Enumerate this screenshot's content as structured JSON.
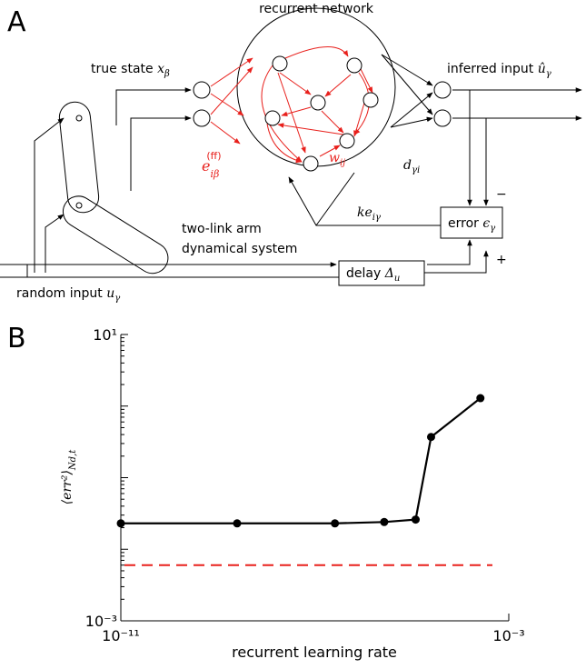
{
  "diagram": {
    "panel_a": "A",
    "network": "recurrent network",
    "true_state": "true state",
    "true_state_sym": "x",
    "true_state_sub": "β",
    "inferred": "inferred input",
    "inferred_sym": "û",
    "inferred_sub": "γ",
    "ff_sym": "e",
    "ff_sub": "iβ",
    "ff_sup": "(ff)",
    "w_sym": "w",
    "w_sub": "ij",
    "d_sym": "d",
    "d_sub": "γi",
    "k_sym": "ke",
    "k_sub": "iγ",
    "error": "error",
    "error_sym": "ϵ",
    "error_sub": "γ",
    "minus": "−",
    "plus": "+",
    "arm_line1": "two-link arm",
    "arm_line2": "dynamical system",
    "delay": "delay",
    "delay_sym": "Δ",
    "delay_sub": "u",
    "random": "random input",
    "random_sym": "u",
    "random_sub": "γ"
  },
  "chart_data": {
    "type": "line",
    "panel": "B",
    "xlabel": "recurrent learning rate",
    "ylabel": "⟨err²⟩",
    "ylabel_sub": "Nd,t",
    "xscale": "log",
    "yscale": "log",
    "xlim": [
      1e-11,
      0.001
    ],
    "ylim": [
      0.001,
      10
    ],
    "xticks": [
      {
        "value": 1e-11,
        "label": "10⁻¹¹"
      },
      {
        "value": 0.001,
        "label": "10⁻³"
      }
    ],
    "yticks": [
      {
        "value": 0.001,
        "label": "10⁻³"
      },
      {
        "value": 10,
        "label": "10¹"
      }
    ],
    "x": [
      1e-11,
      2.5e-09,
      2.6e-07,
      2.7e-06,
      1.2e-05,
      2.5e-05,
      0.00026
    ],
    "series": [
      {
        "color": "#000000",
        "values": [
          0.023,
          0.023,
          0.023,
          0.024,
          0.026,
          0.37,
          1.29
        ]
      }
    ],
    "reference_line": {
      "y": 0.006,
      "color": "#e8201c"
    }
  }
}
